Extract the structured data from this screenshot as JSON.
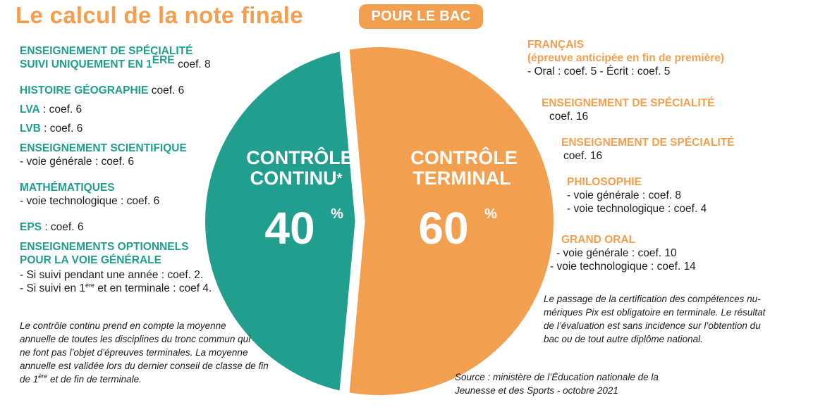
{
  "header": {
    "title": "Le calcul de la note finale",
    "badge": "POUR LE BAC"
  },
  "colors": {
    "teal": "#229e8e",
    "orange": "#f2a050"
  },
  "chart_data": {
    "type": "pie",
    "categories": [
      "CONTRÔLE CONTINU*",
      "CONTRÔLE TERMINAL"
    ],
    "values": [
      40,
      60
    ],
    "unit": "%"
  },
  "pie": {
    "left_title_1": "CONTRÔLE",
    "left_title_2": "CONTINU",
    "left_star": "*",
    "left_value": "40",
    "right_title_1": "CONTRÔLE",
    "right_title_2": "TERMINAL",
    "right_value": "60",
    "percent_sign": "%"
  },
  "left": {
    "spec_line1": "ENSEIGNEMENT DE SPÉCIALITÉ",
    "spec_line2": "SUIVI UNIQUEMENT EN 1",
    "spec_sup": "ÈRE",
    "spec_coef": "coef. 8",
    "histgeo": "HISTOIRE GÉOGRAPHIE",
    "histgeo_coef": "coef. 6",
    "lva": "LVA",
    "lva_coef": " : coef. 6",
    "lvb": "LVB",
    "lvb_coef": " : coef. 6",
    "sci": "ENSEIGNEMENT SCIENTIFIQUE",
    "sci_detail": "- voie générale : coef. 6",
    "math": "MATHÉMATIQUES",
    "math_detail": "- voie technologique : coef. 6",
    "eps": "EPS",
    "eps_coef": " : coef. 6",
    "opt_line1": "ENSEIGNEMENTS OPTIONNELS",
    "opt_line2": "POUR LA VOIE GÉNÉRALE",
    "opt_detail1": "- Si suivi pendant une année : coef. 2.",
    "opt_detail2a": "- Si suivi en 1",
    "opt_detail2_sup": "ère",
    "opt_detail2b": " et en terminale : coef 4.",
    "note_lines": [
      "Le contrôle continu prend en compte la moyenne",
      "annuelle de toutes les disciplines du tronc commun qui",
      "ne font pas l’objet d’épreuves terminales. La moyenne",
      "annuelle est validée lors du dernier conseil de classe de fin"
    ],
    "note_last_a": "de 1",
    "note_last_sup": "ère",
    "note_last_b": " et de fin de terminale."
  },
  "right": {
    "fr_title": "FRANÇAIS",
    "fr_sub": "(épreuve anticipée en fin de première)",
    "fr_detail": "- Oral : coef. 5 - Écrit : coef. 5",
    "spec1_title": "ENSEIGNEMENT DE SPÉCIALITÉ",
    "spec1_coef": "coef. 16",
    "spec2_title": "ENSEIGNEMENT DE SPÉCIALITÉ",
    "spec2_coef": "coef. 16",
    "philo_title": "PHILOSOPHIE",
    "philo_d1": "- voie générale : coef. 8",
    "philo_d2": "- voie technologique : coef. 4",
    "oral_title": "GRAND ORAL",
    "oral_d1": "- voie générale : coef. 10",
    "oral_d2": "- voie technologique : coef. 14",
    "pix_lines": [
      "Le passage de la certification des compétences nu-",
      "mériques Pix est obligatoire en terminale. Le résultat",
      "de l’évaluation est sans incidence sur l’obtention du",
      "bac ou de tout autre diplôme national."
    ],
    "source_lines": [
      "Source : ministère de l’Éducation nationale de la",
      "Jeunesse et des Sports - octobre 2021"
    ]
  }
}
